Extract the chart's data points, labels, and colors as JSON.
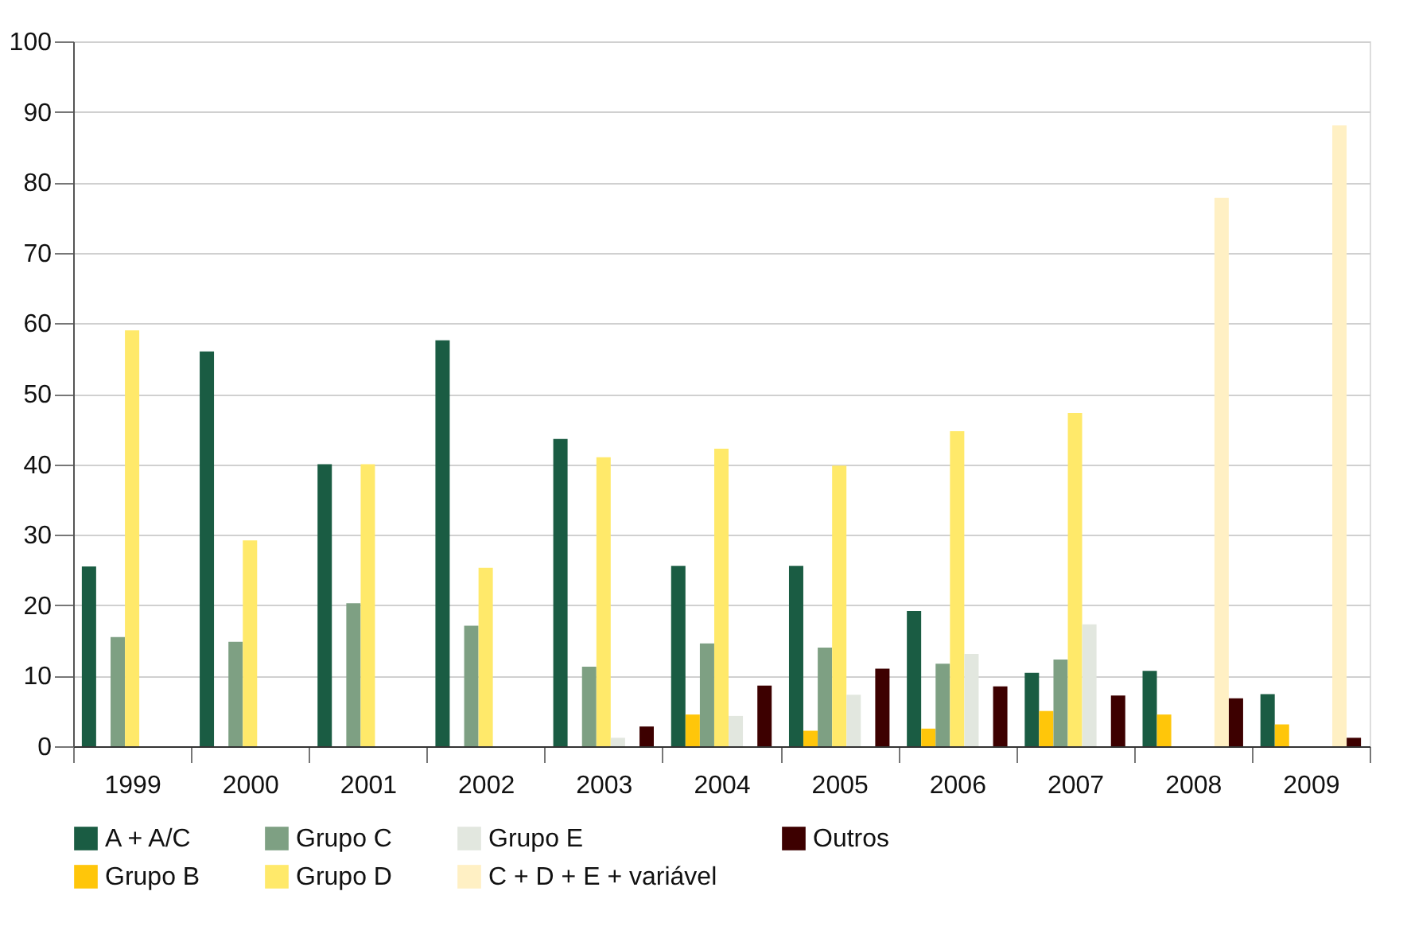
{
  "chart_data": {
    "type": "bar",
    "categories": [
      "1999",
      "2000",
      "2001",
      "2002",
      "2003",
      "2004",
      "2005",
      "2006",
      "2007",
      "2008",
      "2009"
    ],
    "series": [
      {
        "name": "A + A/C",
        "color": "#1a5c43",
        "values": [
          25.5,
          56,
          40,
          57.6,
          43.6,
          25.6,
          25.6,
          19.2,
          10.4,
          10.7,
          7.4
        ]
      },
      {
        "name": "Grupo B",
        "color": "#ffc60a",
        "values": [
          null,
          null,
          null,
          null,
          null,
          4.5,
          2.2,
          2.5,
          5,
          4.5,
          3.1
        ]
      },
      {
        "name": "Grupo C",
        "color": "#7ea083",
        "values": [
          15.5,
          14.8,
          20.3,
          17.1,
          11.3,
          14.6,
          14,
          11.7,
          12.3,
          null,
          null
        ]
      },
      {
        "name": "Grupo D",
        "color": "#ffe96a",
        "values": [
          59,
          29.2,
          40,
          25.3,
          41,
          42.2,
          39.8,
          44.7,
          47.3,
          null,
          null
        ]
      },
      {
        "name": "Grupo E",
        "color": "#e2e7df",
        "values": [
          null,
          null,
          null,
          null,
          1.2,
          4.3,
          7.3,
          13.1,
          17.3,
          null,
          null
        ]
      },
      {
        "name": "C + D + E + variável",
        "color": "#fff0c4",
        "values": [
          null,
          null,
          null,
          null,
          null,
          null,
          null,
          null,
          null,
          77.8,
          88.1
        ]
      },
      {
        "name": "Outros",
        "color": "#3d0000",
        "values": [
          null,
          null,
          null,
          null,
          2.8,
          8.6,
          11,
          8.5,
          7.2,
          6.8,
          1.2
        ]
      }
    ],
    "ylim": [
      0,
      100
    ],
    "yticks": [
      0,
      10,
      20,
      30,
      40,
      50,
      60,
      70,
      80,
      90,
      100
    ],
    "grid": "y",
    "legend": "bottom"
  }
}
